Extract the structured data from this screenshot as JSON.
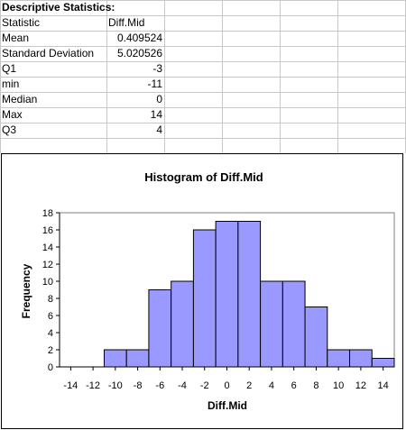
{
  "stats_table": {
    "title": "Descriptive Statistics:",
    "header": [
      "Statistic",
      "Diff.Mid"
    ],
    "rows": [
      [
        "Mean",
        "0.409524"
      ],
      [
        "Standard Deviation",
        "5.020526"
      ],
      [
        "Q1",
        "-3"
      ],
      [
        "min",
        "-11"
      ],
      [
        "Median",
        "0"
      ],
      [
        "Max",
        "14"
      ],
      [
        "Q3",
        "4"
      ]
    ]
  },
  "chart_data": {
    "type": "bar",
    "title": "Histogram of Diff.Mid",
    "xlabel": "Diff.Mid",
    "ylabel": "Frequency",
    "bin_edges": [
      -14,
      -12,
      -10,
      -8,
      -6,
      -4,
      -2,
      0,
      2,
      4,
      6,
      8,
      10,
      12,
      14
    ],
    "bin_width": 2,
    "xlim": [
      -15,
      15
    ],
    "x_ticks": [
      -14,
      -12,
      -10,
      -8,
      -6,
      -4,
      -2,
      0,
      2,
      4,
      6,
      8,
      10,
      12,
      14
    ],
    "ylim": [
      0,
      18
    ],
    "y_ticks": [
      0,
      2,
      4,
      6,
      8,
      10,
      12,
      14,
      16,
      18
    ],
    "series": [
      {
        "bins": [
          {
            "x0": -11,
            "x1": -9,
            "value": 2
          },
          {
            "x0": -9,
            "x1": -7,
            "value": 2
          },
          {
            "x0": -7,
            "x1": -5,
            "value": 9
          },
          {
            "x0": -5,
            "x1": -3,
            "value": 10
          },
          {
            "x0": -3,
            "x1": -1,
            "value": 16
          },
          {
            "x0": -1,
            "x1": 1,
            "value": 17
          },
          {
            "x0": 1,
            "x1": 3,
            "value": 17
          },
          {
            "x0": 3,
            "x1": 5,
            "value": 10
          },
          {
            "x0": 5,
            "x1": 7,
            "value": 10
          },
          {
            "x0": 7,
            "x1": 9,
            "value": 7
          },
          {
            "x0": 9,
            "x1": 11,
            "value": 2
          },
          {
            "x0": 11,
            "x1": 13,
            "value": 2
          },
          {
            "x0": 13,
            "x1": 15,
            "value": 1
          }
        ]
      }
    ],
    "bar_color": "#9999ff",
    "grid": false,
    "legend": "none"
  }
}
